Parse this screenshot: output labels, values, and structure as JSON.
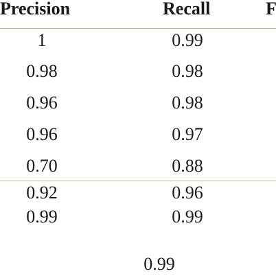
{
  "table": {
    "headers": [
      "Precision",
      "Recall",
      "F"
    ],
    "rows": [
      {
        "precision": "1",
        "recall": "0.99"
      },
      {
        "precision": "0.98",
        "recall": "0.98"
      },
      {
        "precision": "0.96",
        "recall": "0.98"
      },
      {
        "precision": "0.96",
        "recall": "0.97"
      },
      {
        "precision": "0.70",
        "recall": "0.88"
      }
    ],
    "summary_rows": [
      {
        "precision": "0.92",
        "recall": "0.96"
      },
      {
        "precision": "0.99",
        "recall": "0.99"
      }
    ],
    "footer_value": "0.99"
  }
}
